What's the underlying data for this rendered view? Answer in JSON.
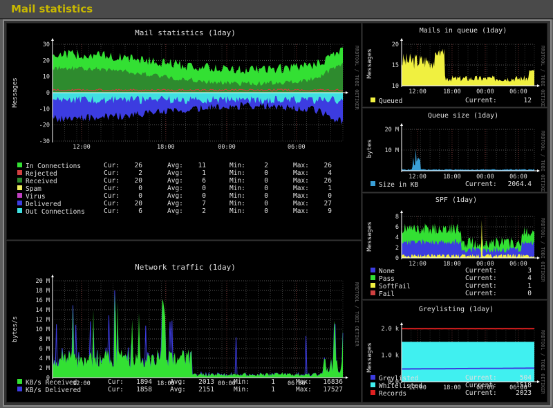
{
  "page": {
    "title": "Mail statistics"
  },
  "side_label": "RRDTOOL / TOBI OETIKER",
  "x_ticks": [
    "12:00",
    "18:00",
    "00:00",
    "06:00"
  ],
  "colors": {
    "in_conn": "#33e033",
    "rejected": "#d04040",
    "received": "#2e8b2e",
    "spam": "#f0f060",
    "virus": "#c040c0",
    "delivered": "#3c3ce0",
    "out_conn": "#40e0e0",
    "queued": "#f0f040",
    "size": "#3aa0d8",
    "spf_none": "#3c3ce0",
    "spf_pass": "#33e033",
    "spf_softfail": "#f0f040",
    "spf_fail": "#d04040",
    "grey": "#3c3ce0",
    "white": "#40f0f0",
    "records": "#e02020"
  },
  "mail": {
    "title": "Mail statistics  (1day)",
    "ylabel": "Messages",
    "yticks": [
      "30",
      "20",
      "10",
      "0",
      "-10",
      "-20",
      "-30"
    ],
    "col_cur": "Cur:",
    "col_avg": "Avg:",
    "col_min": "Min:",
    "col_max": "Max:",
    "rows": [
      {
        "label": "In Connections",
        "cur": "26",
        "avg": "11",
        "min": "2",
        "max": "26",
        "color": "#33e033"
      },
      {
        "label": "Rejected",
        "cur": "2",
        "avg": "1",
        "min": "0",
        "max": "4",
        "color": "#d04040"
      },
      {
        "label": "Received",
        "cur": "20",
        "avg": "6",
        "min": "0",
        "max": "26",
        "color": "#2e8b2e"
      },
      {
        "label": "Spam",
        "cur": "0",
        "avg": "0",
        "min": "0",
        "max": "1",
        "color": "#f0f060"
      },
      {
        "label": "Virus",
        "cur": "0",
        "avg": "0",
        "min": "0",
        "max": "0",
        "color": "#c040c0"
      },
      {
        "label": "Delivered",
        "cur": "20",
        "avg": "7",
        "min": "0",
        "max": "27",
        "color": "#3c3ce0"
      },
      {
        "label": "Out Connections",
        "cur": "6",
        "avg": "2",
        "min": "0",
        "max": "9",
        "color": "#40e0e0"
      }
    ]
  },
  "net": {
    "title": "Network traffic  (1day)",
    "ylabel": "bytes/s",
    "yticks": [
      "20 M",
      "18 M",
      "16 M",
      "14 M",
      "12 M",
      "10 M",
      "8 M",
      "6 M",
      "4 M",
      "2 M",
      "0"
    ],
    "col_cur": "Cur:",
    "col_avg": "Avg:",
    "col_min": "Min:",
    "col_max": "Max:",
    "rows": [
      {
        "label": "KB/s Received",
        "cur": "1894",
        "avg": "2013",
        "min": "1",
        "max": "16836",
        "color": "#33e033"
      },
      {
        "label": "KB/s Delivered",
        "cur": "1858",
        "avg": "2151",
        "min": "1",
        "max": "17527",
        "color": "#3c3ce0"
      }
    ]
  },
  "queue": {
    "title": "Mails in queue  (1day)",
    "ylabel": "Messages",
    "yticks": [
      "20",
      "15",
      "10"
    ],
    "current_label": "Current:",
    "rows": [
      {
        "label": "Queued",
        "current": "12",
        "color": "#f0f040"
      }
    ]
  },
  "qsize": {
    "title": "Queue size  (1day)",
    "ylabel": "bytes",
    "yticks": [
      "20 M",
      "10 M"
    ],
    "current_label": "Current:",
    "rows": [
      {
        "label": "Size in KB",
        "current": "2064.4",
        "color": "#3aa0d8"
      }
    ]
  },
  "spf": {
    "title": "SPF  (1day)",
    "ylabel": "Messages",
    "yticks": [
      "8",
      "6",
      "4",
      "2",
      "0"
    ],
    "current_label": "Current:",
    "rows": [
      {
        "label": "None",
        "current": "3",
        "color": "#3c3ce0"
      },
      {
        "label": "Pass",
        "current": "4",
        "color": "#33e033"
      },
      {
        "label": "SoftFail",
        "current": "1",
        "color": "#f0f040"
      },
      {
        "label": "Fail",
        "current": "0",
        "color": "#d04040"
      }
    ]
  },
  "grey": {
    "title": "Greylisting  (1day)",
    "ylabel": "Messages",
    "yticks": [
      "2.0 k",
      "1.0 k",
      "0.0"
    ],
    "current_label": "Current:",
    "rows": [
      {
        "label": "Greylisted",
        "current": "504",
        "color": "#3c3ce0"
      },
      {
        "label": "Whitelisted",
        "current": "1518",
        "color": "#40f0f0"
      },
      {
        "label": "Records",
        "current": "2023",
        "color": "#e02020"
      }
    ]
  }
}
